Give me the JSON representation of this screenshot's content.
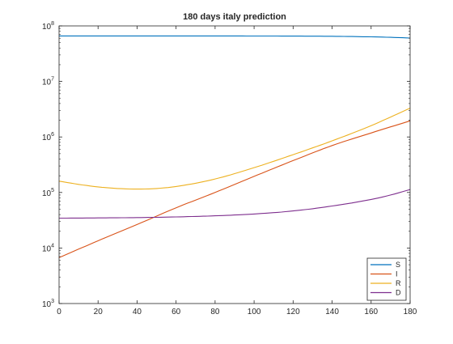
{
  "chart_data": {
    "type": "line",
    "title": "180 days italy prediction",
    "xlabel": "",
    "ylabel": "",
    "xlim": [
      0,
      180
    ],
    "ylim": [
      1000,
      100000000
    ],
    "yscale": "log",
    "grid": false,
    "legend_position": "bottom-right",
    "xticks": [
      0,
      20,
      40,
      60,
      80,
      100,
      120,
      140,
      160,
      180
    ],
    "yticks": [
      {
        "value": 1000,
        "base": "10",
        "exp": "3"
      },
      {
        "value": 10000,
        "base": "10",
        "exp": "4"
      },
      {
        "value": 100000,
        "base": "10",
        "exp": "5"
      },
      {
        "value": 1000000,
        "base": "10",
        "exp": "6"
      },
      {
        "value": 10000000,
        "base": "10",
        "exp": "7"
      },
      {
        "value": 100000000,
        "base": "10",
        "exp": "8"
      }
    ],
    "series": [
      {
        "name": "S",
        "color": "#0072bd",
        "x": [
          0,
          20,
          40,
          60,
          80,
          100,
          120,
          140,
          160,
          170,
          180
        ],
        "y": [
          66000000,
          66000000,
          66000000,
          66000000,
          65900000,
          65800000,
          65500000,
          65000000,
          63500000,
          62300000,
          60500000
        ]
      },
      {
        "name": "I",
        "color": "#d95319",
        "x": [
          0,
          20,
          40,
          60,
          80,
          100,
          120,
          140,
          160,
          180
        ],
        "y": [
          6700,
          13500,
          26500,
          53000,
          100000,
          195000,
          375000,
          700000,
          1180000,
          1950000
        ]
      },
      {
        "name": "R",
        "color": "#edb120",
        "x": [
          0,
          10,
          20,
          30,
          40,
          50,
          60,
          80,
          100,
          120,
          140,
          160,
          180
        ],
        "y": [
          160000,
          140000,
          126000,
          118000,
          115000,
          118000,
          128000,
          175000,
          280000,
          480000,
          850000,
          1600000,
          3300000
        ]
      },
      {
        "name": "D",
        "color": "#7e2f8e",
        "x": [
          0,
          20,
          40,
          60,
          80,
          100,
          120,
          140,
          160,
          170,
          180
        ],
        "y": [
          34500,
          34800,
          35300,
          36300,
          38000,
          41000,
          46500,
          57000,
          75000,
          90000,
          113000
        ]
      }
    ]
  }
}
